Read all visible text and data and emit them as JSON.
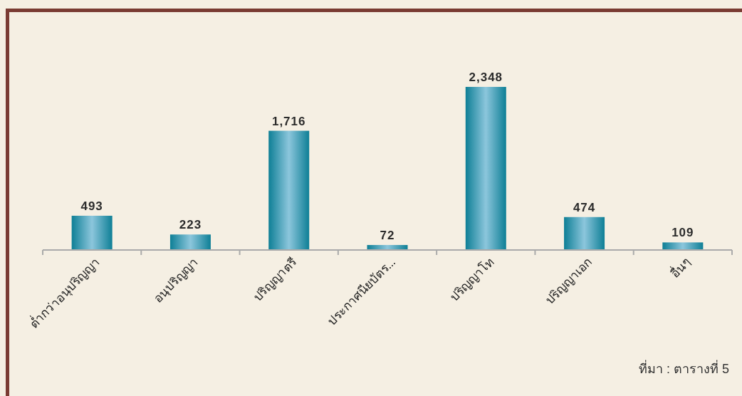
{
  "chart_data": {
    "type": "bar",
    "categories": [
      "ต่ำกว่าอนุปริญญา",
      "อนุปริญญา",
      "ปริญญาตรี",
      "ประกาศนียบัตร...",
      "ปริญญาโท",
      "ปริญญาเอก",
      "อื่นๆ"
    ],
    "values": [
      493,
      223,
      1716,
      72,
      2348,
      474,
      109
    ],
    "color": "#0e7f96",
    "value_labels": [
      "493",
      "223",
      "1,716",
      "72",
      "2,348",
      "474",
      "109"
    ],
    "annotations": [
      "ที่มา : ตารางที่ 5"
    ]
  }
}
